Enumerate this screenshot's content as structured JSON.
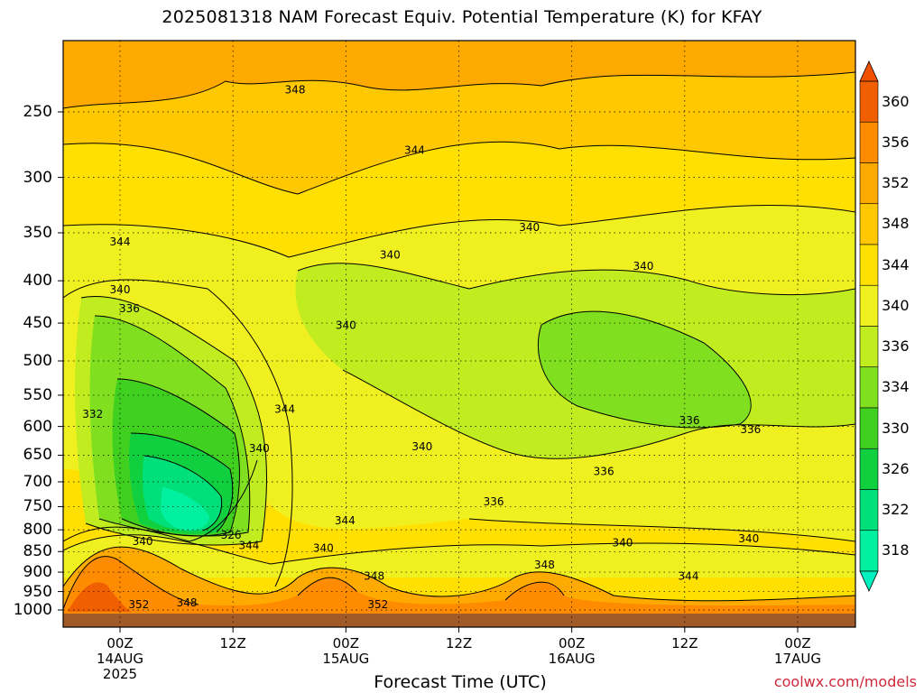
{
  "chart_data": {
    "type": "contour",
    "title": "2025081318 NAM Forecast Equiv. Potential Temperature (K) for KFAY",
    "xlabel": "Forecast Time (UTC)",
    "ylabel": "",
    "y_axis": {
      "ticks": [
        "250",
        "300",
        "350",
        "400",
        "450",
        "500",
        "550",
        "600",
        "650",
        "700",
        "750",
        "800",
        "850",
        "900",
        "950",
        "1000"
      ],
      "range": [
        200,
        1010
      ],
      "scale": "log-pressure"
    },
    "x_axis": {
      "ticks": [
        {
          "line1": "00Z",
          "line2": "14AUG",
          "line3": "2025",
          "hour": 6
        },
        {
          "line1": "12Z",
          "line2": "",
          "line3": "",
          "hour": 18
        },
        {
          "line1": "00Z",
          "line2": "15AUG",
          "line3": "",
          "hour": 30
        },
        {
          "line1": "12Z",
          "line2": "",
          "line3": "",
          "hour": 42
        },
        {
          "line1": "00Z",
          "line2": "16AUG",
          "line3": "",
          "hour": 54
        },
        {
          "line1": "12Z",
          "line2": "",
          "line3": "",
          "hour": 66
        },
        {
          "line1": "00Z",
          "line2": "17AUG",
          "line3": "",
          "hour": 78
        }
      ],
      "range_hours": [
        0,
        84
      ]
    },
    "colorbar": {
      "levels": [
        "318",
        "322",
        "326",
        "330",
        "334",
        "336",
        "340",
        "344",
        "348",
        "352",
        "356",
        "360"
      ],
      "colors": [
        "#00f0a0",
        "#00e07a",
        "#10d040",
        "#40d020",
        "#80e020",
        "#c0ec20",
        "#f0f020",
        "#ffe000",
        "#ffc800",
        "#ffaa00",
        "#ff8c00",
        "#f06000"
      ]
    },
    "contour_labels": [
      {
        "text": "348",
        "hour": 24.6,
        "p": 235
      },
      {
        "text": "344",
        "hour": 37.3,
        "p": 278
      },
      {
        "text": "344",
        "hour": 6.0,
        "p": 359
      },
      {
        "text": "340",
        "hour": 34.7,
        "p": 372
      },
      {
        "text": "340",
        "hour": 49.5,
        "p": 345
      },
      {
        "text": "340",
        "hour": 61.6,
        "p": 384
      },
      {
        "text": "340",
        "hour": 6.0,
        "p": 410
      },
      {
        "text": "336",
        "hour": 7.0,
        "p": 432
      },
      {
        "text": "340",
        "hour": 30.0,
        "p": 453
      },
      {
        "text": "332",
        "hour": 3.1,
        "p": 580
      },
      {
        "text": "344",
        "hour": 23.5,
        "p": 572
      },
      {
        "text": "336",
        "hour": 73.0,
        "p": 605
      },
      {
        "text": "336",
        "hour": 66.5,
        "p": 590
      },
      {
        "text": "340",
        "hour": 20.8,
        "p": 638
      },
      {
        "text": "340",
        "hour": 38.1,
        "p": 635
      },
      {
        "text": "336",
        "hour": 57.4,
        "p": 680
      },
      {
        "text": "336",
        "hour": 45.7,
        "p": 740
      },
      {
        "text": "344",
        "hour": 29.9,
        "p": 780
      },
      {
        "text": "326",
        "hour": 17.8,
        "p": 812
      },
      {
        "text": "340",
        "hour": 8.4,
        "p": 826
      },
      {
        "text": "344",
        "hour": 19.7,
        "p": 836
      },
      {
        "text": "340",
        "hour": 27.6,
        "p": 842
      },
      {
        "text": "340",
        "hour": 59.4,
        "p": 829
      },
      {
        "text": "340",
        "hour": 72.8,
        "p": 820
      },
      {
        "text": "348",
        "hour": 51.1,
        "p": 882
      },
      {
        "text": "348",
        "hour": 33.0,
        "p": 910
      },
      {
        "text": "344",
        "hour": 66.4,
        "p": 910
      },
      {
        "text": "352",
        "hour": 8.0,
        "p": 985
      },
      {
        "text": "348",
        "hour": 13.1,
        "p": 980
      },
      {
        "text": "352",
        "hour": 33.4,
        "p": 985
      }
    ]
  },
  "credit": "coolwx.com/models"
}
